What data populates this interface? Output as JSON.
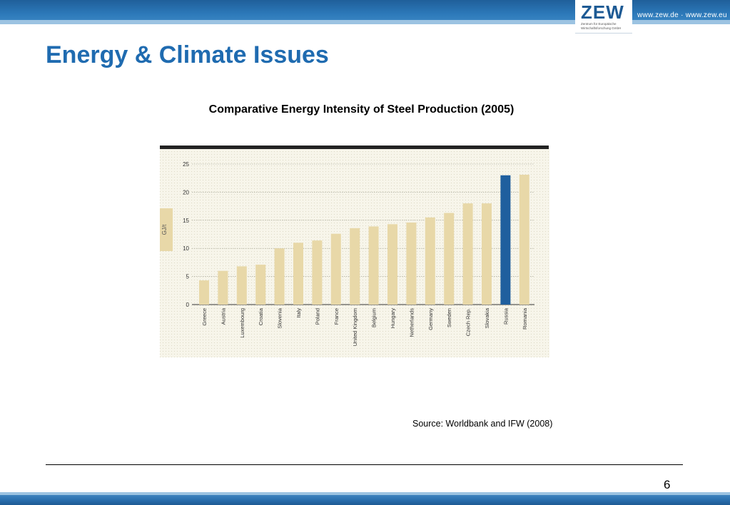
{
  "header": {
    "logo": "ZEW",
    "logo_subtitle": "Zentrum für Europäische Wirtschaftsforschung GmbH",
    "site_url": "www.zew.de · www.zew.eu"
  },
  "page": {
    "title": "Energy & Climate Issues",
    "source": "Source: Worldbank and IFW (2008)",
    "page_number": "6"
  },
  "colors": {
    "brand_blue": "#1f6bb0",
    "bar_default": "#e8d8a8",
    "bar_highlight": "#1f5f9e",
    "plot_background": "#f6f4e8"
  },
  "chart_data": {
    "type": "bar",
    "title": "Comparative Energy Intensity of Steel Production (2005)",
    "ylabel": "GJ/t",
    "xlabel": "",
    "ylim": [
      0,
      25
    ],
    "yticks": [
      0,
      5,
      10,
      15,
      20,
      25
    ],
    "grid": true,
    "categories": [
      "Greece",
      "Austria",
      "Luxembourg",
      "Croatia",
      "Slovenia",
      "Italy",
      "Poland",
      "France",
      "United Kingdom",
      "Belgium",
      "Hungary",
      "Netherlands",
      "Germany",
      "Sweden",
      "Czech Rep.",
      "Slovakia",
      "Russia",
      "Romania"
    ],
    "values": [
      4.3,
      6.0,
      6.8,
      7.1,
      10.0,
      11.0,
      11.4,
      12.6,
      13.6,
      13.9,
      14.3,
      14.6,
      15.5,
      16.3,
      18.0,
      18.0,
      23.0,
      23.1
    ],
    "highlight": "Russia"
  }
}
